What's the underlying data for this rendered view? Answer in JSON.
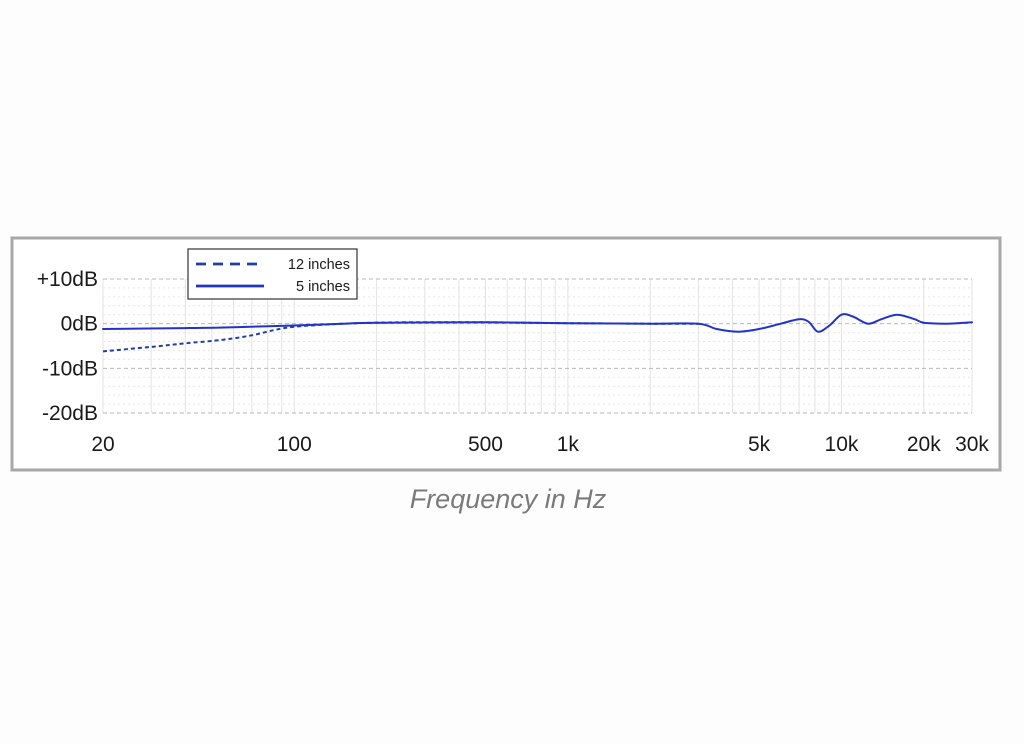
{
  "chart_data": {
    "type": "line",
    "xlabel": "Frequency in Hz",
    "ylabel": "",
    "x_scale": "log",
    "xlim": [
      20,
      30000
    ],
    "ylim": [
      -20,
      10
    ],
    "grid": true,
    "legend_position": "top-left",
    "x_ticks": [
      {
        "value": 20,
        "label": "20"
      },
      {
        "value": 100,
        "label": "100"
      },
      {
        "value": 500,
        "label": "500"
      },
      {
        "value": 1000,
        "label": "1k"
      },
      {
        "value": 5000,
        "label": "5k"
      },
      {
        "value": 10000,
        "label": "10k"
      },
      {
        "value": 20000,
        "label": "20k"
      },
      {
        "value": 30000,
        "label": "30k"
      }
    ],
    "y_ticks": [
      {
        "value": 10,
        "label": "+10dB"
      },
      {
        "value": 0,
        "label": "0dB"
      },
      {
        "value": -10,
        "label": "-10dB"
      },
      {
        "value": -20,
        "label": "-20dB"
      }
    ],
    "series": [
      {
        "name": "12 inches",
        "style": "dashed",
        "color": "#1f3fa6",
        "points": [
          [
            20,
            -6.2
          ],
          [
            30,
            -5.2
          ],
          [
            40,
            -4.4
          ],
          [
            55,
            -3.6
          ],
          [
            70,
            -2.6
          ],
          [
            85,
            -1.4
          ],
          [
            100,
            -0.7
          ],
          [
            130,
            -0.2
          ],
          [
            170,
            0.1
          ],
          [
            250,
            0.3
          ],
          [
            500,
            0.3
          ],
          [
            1000,
            0.1
          ],
          [
            2000,
            0.0
          ],
          [
            3000,
            0.0
          ]
        ]
      },
      {
        "name": "5 inches",
        "style": "solid",
        "color": "#2233c8",
        "points": [
          [
            20,
            -1.2
          ],
          [
            40,
            -1.0
          ],
          [
            60,
            -0.8
          ],
          [
            100,
            -0.4
          ],
          [
            150,
            0.0
          ],
          [
            200,
            0.2
          ],
          [
            500,
            0.3
          ],
          [
            1000,
            0.1
          ],
          [
            2000,
            0.0
          ],
          [
            3000,
            0.0
          ],
          [
            3500,
            -1.2
          ],
          [
            4200,
            -1.8
          ],
          [
            5000,
            -1.2
          ],
          [
            6000,
            0.0
          ],
          [
            7000,
            1.0
          ],
          [
            7600,
            0.4
          ],
          [
            8200,
            -1.8
          ],
          [
            9000,
            -0.5
          ],
          [
            10000,
            2.0
          ],
          [
            11000,
            1.6
          ],
          [
            12500,
            0.0
          ],
          [
            14000,
            1.0
          ],
          [
            16000,
            2.0
          ],
          [
            18500,
            1.0
          ],
          [
            20000,
            0.2
          ],
          [
            24000,
            0.0
          ],
          [
            30000,
            0.3
          ]
        ]
      }
    ]
  }
}
